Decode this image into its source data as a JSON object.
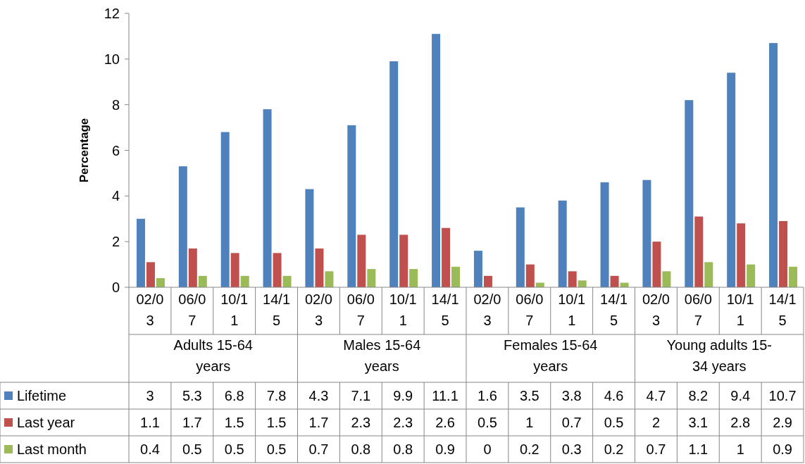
{
  "chart_data": {
    "type": "bar",
    "ylabel": "Percentage",
    "categories": [
      "02/03",
      "06/07",
      "10/11",
      "14/15",
      "02/03",
      "06/07",
      "10/11",
      "14/15",
      "02/03",
      "06/07",
      "10/11",
      "14/15",
      "02/03",
      "06/07",
      "10/11",
      "14/15"
    ],
    "annotations": [
      "Adults 15-64 years",
      "Males 15-64 years",
      "Females 15-64 years",
      "Young adults 15-34 years"
    ],
    "series": [
      {
        "name": "Lifetime",
        "color": "#4f81bd",
        "values": [
          3,
          5.3,
          6.8,
          7.8,
          4.3,
          7.1,
          9.9,
          11.1,
          1.6,
          3.5,
          3.8,
          4.6,
          4.7,
          8.2,
          9.4,
          10.7
        ]
      },
      {
        "name": "Last year",
        "color": "#c0504d",
        "values": [
          1.1,
          1.7,
          1.5,
          1.5,
          1.7,
          2.3,
          2.3,
          2.6,
          0.5,
          1,
          0.7,
          0.5,
          2,
          3.1,
          2.8,
          2.9
        ]
      },
      {
        "name": "Last month",
        "color": "#9bbb59",
        "values": [
          0.4,
          0.5,
          0.5,
          0.5,
          0.7,
          0.8,
          0.8,
          0.9,
          0,
          0.2,
          0.3,
          0.2,
          0.7,
          1.1,
          1,
          0.9
        ]
      }
    ],
    "ylim": [
      0,
      12
    ],
    "yticks": [
      0,
      2,
      4,
      6,
      8,
      10,
      12
    ],
    "grid": false,
    "legend": "bottom",
    "data_labels": true
  }
}
